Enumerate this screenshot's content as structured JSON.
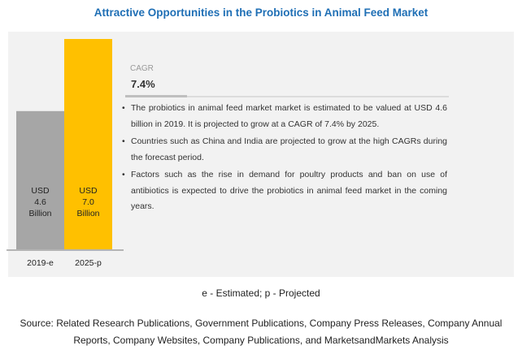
{
  "title": "Attractive Opportunities in the Probiotics in Animal Feed Market",
  "cagr": {
    "label": "CAGR",
    "value": "7.4%",
    "fraction": 0.19
  },
  "bullets": [
    "The probiotics in animal feed market market is estimated to be valued at USD 4.6 billion in 2019. It is projected to grow at a CAGR of 7.4% by 2025.",
    "Countries such as China and India are projected to grow at the high CAGRs during the forecast period.",
    "Factors such as the rise in demand for poultry products and ban on use of antibiotics is expected to drive the probiotics in animal feed market in the coming years."
  ],
  "footnote": "e - Estimated; p - Projected",
  "source": "Source: Related Research Publications, Government Publications, Company Press Releases, Company Annual Reports, Company Websites, Company Publications, and MarketsandMarkets Analysis",
  "chart_data": {
    "type": "bar",
    "categories": [
      "2019-e",
      "2025-p"
    ],
    "values": [
      4.6,
      7.0
    ],
    "data_labels": [
      [
        "USD",
        "4.6",
        "Billion"
      ],
      [
        "USD",
        "7.0",
        "Billion"
      ]
    ],
    "colors": [
      "#a6a6a6",
      "#ffc000"
    ],
    "title": "",
    "xlabel": "",
    "ylabel": "",
    "grid": false
  }
}
